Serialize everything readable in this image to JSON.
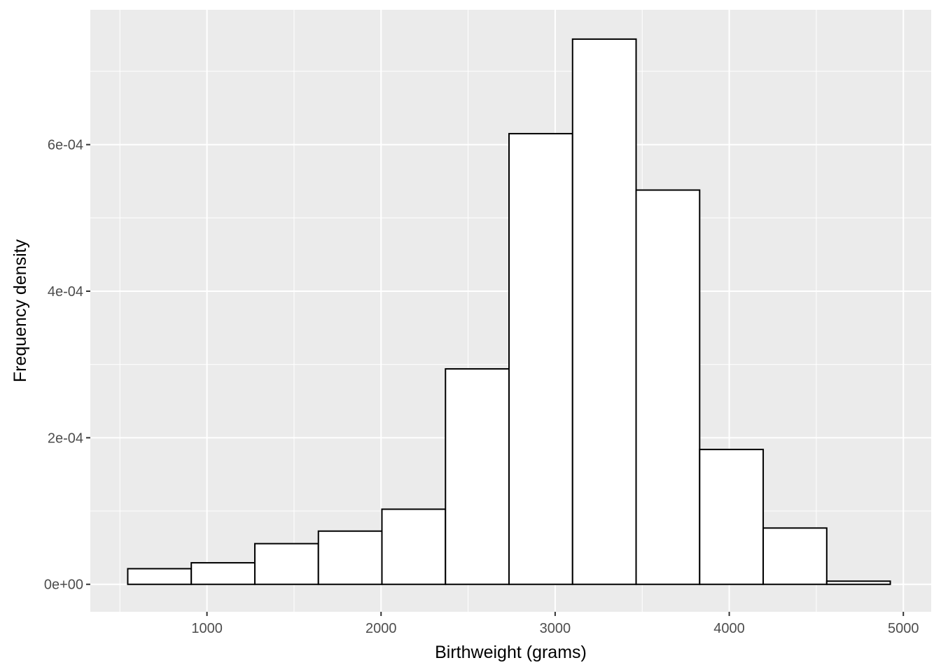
{
  "chart_data": {
    "type": "histogram",
    "title": "",
    "xlabel": "Birthweight (grams)",
    "ylabel": "Frequency density",
    "xlim": [
      330,
      5160
    ],
    "ylim": [
      -3.75e-05,
      0.000784
    ],
    "x_ticks": [
      {
        "value": 1000,
        "label": "1000"
      },
      {
        "value": 2000,
        "label": "2000"
      },
      {
        "value": 3000,
        "label": "3000"
      },
      {
        "value": 4000,
        "label": "4000"
      },
      {
        "value": 5000,
        "label": "5000"
      }
    ],
    "y_ticks": [
      {
        "value": 0,
        "label": "0e+00"
      },
      {
        "value": 0.0002,
        "label": "2e-04"
      },
      {
        "value": 0.0004,
        "label": "4e-04"
      },
      {
        "value": 0.0006,
        "label": "6e-04"
      }
    ],
    "grid": true,
    "bins": [
      {
        "x0": 545,
        "x1": 910,
        "density": 2.13e-05
      },
      {
        "x0": 910,
        "x1": 1275,
        "density": 2.94e-05
      },
      {
        "x0": 1275,
        "x1": 1640,
        "density": 5.55e-05
      },
      {
        "x0": 1640,
        "x1": 2005,
        "density": 7.26e-05
      },
      {
        "x0": 2005,
        "x1": 2370,
        "density": 0.0001025
      },
      {
        "x0": 2370,
        "x1": 2735,
        "density": 0.000294
      },
      {
        "x0": 2735,
        "x1": 3100,
        "density": 0.000615
      },
      {
        "x0": 3100,
        "x1": 3465,
        "density": 0.000744
      },
      {
        "x0": 3465,
        "x1": 3830,
        "density": 0.000538
      },
      {
        "x0": 3830,
        "x1": 4195,
        "density": 0.000184
      },
      {
        "x0": 4195,
        "x1": 4560,
        "density": 7.68e-05
      },
      {
        "x0": 4560,
        "x1": 4925,
        "density": 4.3e-06
      }
    ],
    "colors": {
      "panel_background": "#ebebeb",
      "grid": "#ffffff",
      "bar_fill": "#ffffff",
      "bar_outline": "#000000",
      "tick_label": "#4d4d4d",
      "tick_mark": "#333333"
    }
  }
}
